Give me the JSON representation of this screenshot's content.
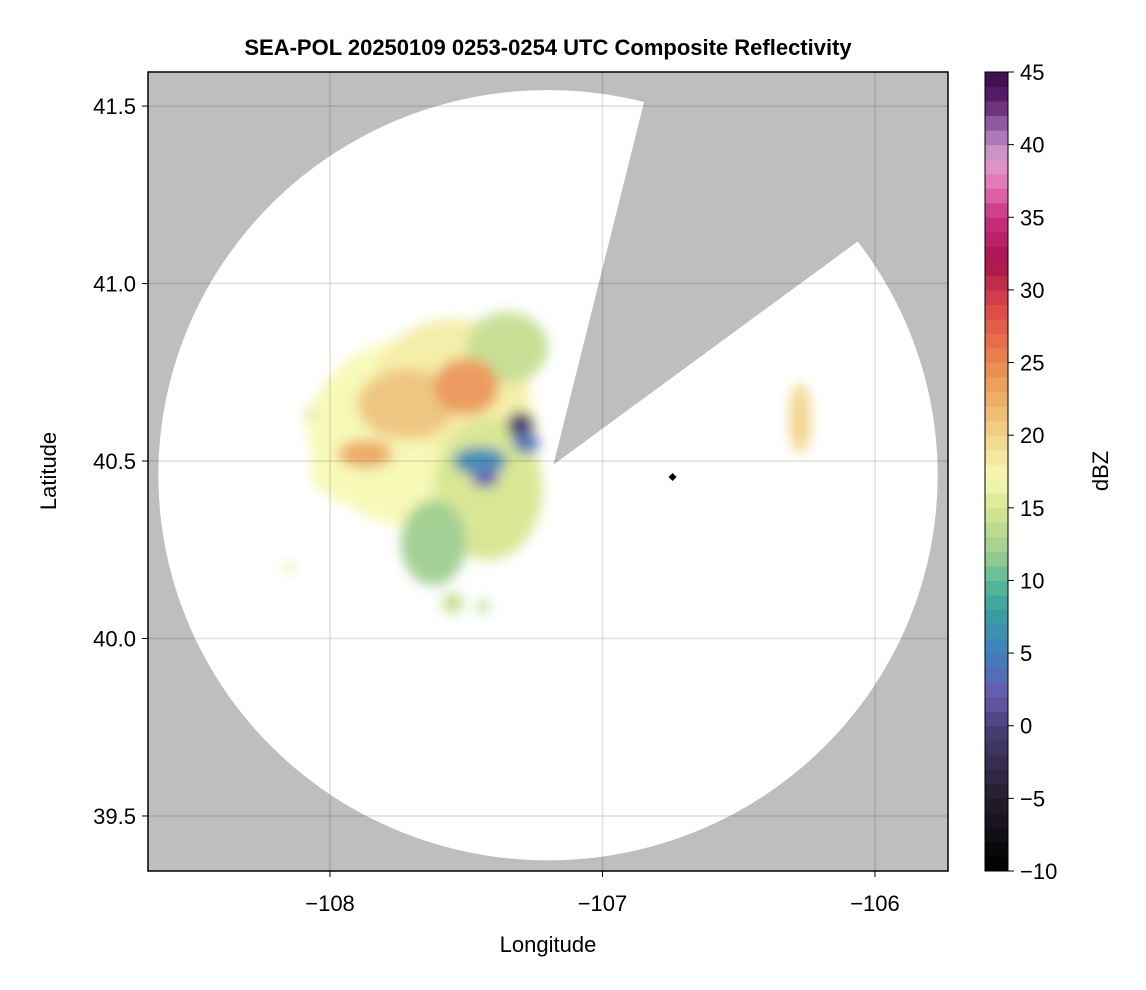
{
  "chart_data": {
    "type": "heatmap",
    "title": "SEA-POL 20250109 0253-0254 UTC Composite Reflectivity",
    "xlabel": "Longitude",
    "ylabel": "Latitude",
    "xlim": [
      -108.668,
      -105.732
    ],
    "ylim": [
      39.345,
      41.596
    ],
    "xticks": [
      -108,
      -107,
      -106
    ],
    "xtick_labels": [
      "−108",
      "−107",
      "−106"
    ],
    "yticks": [
      39.5,
      40.0,
      40.5,
      41.0,
      41.5
    ],
    "ytick_labels": [
      "39.5",
      "40.0",
      "40.5",
      "41.0",
      "41.5"
    ],
    "grid": true,
    "background_color": "#bebebe",
    "radar_coverage": {
      "center_lon": -107.2,
      "center_lat": 40.46,
      "radius_lon": 1.43,
      "radius_lat": 1.085
    },
    "blocked_sector": [
      [
        -107.18,
        40.49
      ],
      [
        -106.82,
        41.596
      ],
      [
        -105.732,
        41.596
      ],
      [
        -105.732,
        41.305
      ]
    ],
    "marker": {
      "lon": -106.743,
      "lat": 40.455,
      "shape": "diamond",
      "color": "#000000"
    },
    "colorbar": {
      "label": "dBZ",
      "range": [
        -10,
        45
      ],
      "step": 1,
      "ticks": [
        -10,
        -5,
        0,
        5,
        10,
        15,
        20,
        25,
        30,
        35,
        40,
        45
      ],
      "tick_labels": [
        "−10",
        "−5",
        "0",
        "5",
        "10",
        "15",
        "20",
        "25",
        "30",
        "35",
        "40",
        "45"
      ],
      "anchors": [
        [
          -10,
          "#000000"
        ],
        [
          -5,
          "#231c2c"
        ],
        [
          0,
          "#4b3f78"
        ],
        [
          2,
          "#6a5aad"
        ],
        [
          5,
          "#3f7fbf"
        ],
        [
          8,
          "#3aa0a0"
        ],
        [
          10,
          "#5dba98"
        ],
        [
          12,
          "#9fce8f"
        ],
        [
          15,
          "#d8e690"
        ],
        [
          17,
          "#f7f9b4"
        ],
        [
          20,
          "#f1d48a"
        ],
        [
          23,
          "#eca860"
        ],
        [
          26,
          "#e8764a"
        ],
        [
          29,
          "#d9454a"
        ],
        [
          32,
          "#a7124e"
        ],
        [
          35,
          "#c8327f"
        ],
        [
          37,
          "#e270b0"
        ],
        [
          39,
          "#dba0cc"
        ],
        [
          41,
          "#9d6cb0"
        ],
        [
          43,
          "#5f2070"
        ],
        [
          45,
          "#3a0a48"
        ]
      ]
    },
    "echo_regions": [
      {
        "lon": -107.66,
        "lat": 40.58,
        "rlon": 0.42,
        "rlat": 0.27,
        "dbz": 17
      },
      {
        "lon": -107.55,
        "lat": 40.72,
        "rlon": 0.28,
        "rlat": 0.18,
        "dbz": 18
      },
      {
        "lon": -107.42,
        "lat": 40.42,
        "rlon": 0.2,
        "rlat": 0.2,
        "dbz": 15
      },
      {
        "lon": -107.85,
        "lat": 40.47,
        "rlon": 0.22,
        "rlat": 0.1,
        "dbz": 17
      },
      {
        "lon": -107.62,
        "lat": 40.27,
        "rlon": 0.12,
        "rlat": 0.12,
        "dbz": 12
      },
      {
        "lon": -107.35,
        "lat": 40.82,
        "rlon": 0.15,
        "rlat": 0.1,
        "dbz": 14
      },
      {
        "lon": -107.72,
        "lat": 40.66,
        "rlon": 0.18,
        "rlat": 0.1,
        "dbz": 21
      },
      {
        "lon": -107.5,
        "lat": 40.71,
        "rlon": 0.12,
        "rlat": 0.08,
        "dbz": 24
      },
      {
        "lon": -107.87,
        "lat": 40.52,
        "rlon": 0.1,
        "rlat": 0.04,
        "dbz": 23
      },
      {
        "lon": -107.45,
        "lat": 40.5,
        "rlon": 0.1,
        "rlat": 0.04,
        "dbz": 6
      },
      {
        "lon": -107.43,
        "lat": 40.45,
        "rlon": 0.05,
        "rlat": 0.025,
        "dbz": 2
      },
      {
        "lon": -107.3,
        "lat": 40.6,
        "rlon": 0.05,
        "rlat": 0.04,
        "dbz": -1
      },
      {
        "lon": -107.28,
        "lat": 40.55,
        "rlon": 0.05,
        "rlat": 0.03,
        "dbz": 4
      },
      {
        "lon": -107.55,
        "lat": 40.1,
        "rlon": 0.04,
        "rlat": 0.03,
        "dbz": 14
      },
      {
        "lon": -107.44,
        "lat": 40.09,
        "rlon": 0.02,
        "rlat": 0.02,
        "dbz": 13
      },
      {
        "lon": -106.275,
        "lat": 40.62,
        "rlon": 0.04,
        "rlat": 0.1,
        "dbz": 20
      },
      {
        "lon": -108.07,
        "lat": 40.63,
        "rlon": 0.02,
        "rlat": 0.02,
        "dbz": 15
      },
      {
        "lon": -108.15,
        "lat": 40.2,
        "rlon": 0.02,
        "rlat": 0.015,
        "dbz": 16
      }
    ]
  }
}
